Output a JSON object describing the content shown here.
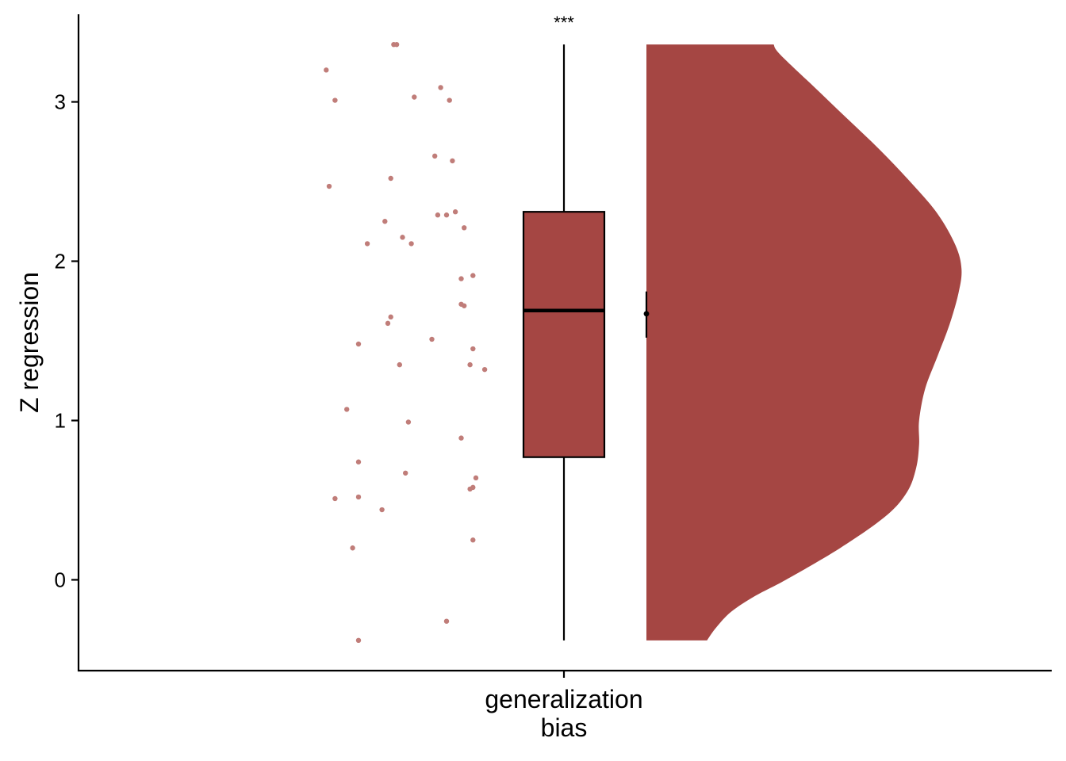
{
  "chart_data": {
    "type": "raincloud",
    "title": "",
    "xlabel": "",
    "ylabel": "Z regression",
    "categories": [
      "generalization\nbias"
    ],
    "ylim": [
      -0.57,
      3.55
    ],
    "yticks": [
      0,
      1,
      2,
      3
    ],
    "significance": "***",
    "colors": {
      "fill": "#a54643",
      "points": "#c07d79",
      "line": "#000000"
    },
    "boxplot": {
      "min": -0.38,
      "q1": 0.77,
      "median": 1.69,
      "q3": 2.31,
      "max": 3.36
    },
    "mean": {
      "value": 1.67,
      "lower": 1.52,
      "upper": 1.81
    },
    "density": {
      "y": [
        -0.38,
        -0.3,
        -0.2,
        -0.1,
        0.0,
        0.2,
        0.4,
        0.55,
        0.7,
        0.85,
        1.0,
        1.2,
        1.4,
        1.6,
        1.8,
        1.95,
        2.1,
        2.3,
        2.5,
        2.7,
        2.9,
        3.1,
        3.3,
        3.36
      ],
      "width": [
        0.2,
        0.23,
        0.28,
        0.36,
        0.46,
        0.64,
        0.79,
        0.86,
        0.89,
        0.9,
        0.9,
        0.92,
        0.96,
        1.0,
        1.03,
        1.04,
        1.02,
        0.96,
        0.87,
        0.77,
        0.66,
        0.55,
        0.44,
        0.42
      ]
    },
    "points": [
      {
        "x": -0.81,
        "y": 3.2
      },
      {
        "x": -0.58,
        "y": 3.36
      },
      {
        "x": -0.57,
        "y": 3.36
      },
      {
        "x": -0.42,
        "y": 3.09
      },
      {
        "x": -0.78,
        "y": 3.01
      },
      {
        "x": -0.51,
        "y": 3.03
      },
      {
        "x": -0.39,
        "y": 3.01
      },
      {
        "x": -0.44,
        "y": 2.66
      },
      {
        "x": -0.38,
        "y": 2.63
      },
      {
        "x": -0.59,
        "y": 2.52
      },
      {
        "x": -0.8,
        "y": 2.47
      },
      {
        "x": -0.43,
        "y": 2.29
      },
      {
        "x": -0.4,
        "y": 2.29
      },
      {
        "x": -0.37,
        "y": 2.31
      },
      {
        "x": -0.61,
        "y": 2.25
      },
      {
        "x": -0.34,
        "y": 2.21
      },
      {
        "x": -0.55,
        "y": 2.15
      },
      {
        "x": -0.52,
        "y": 2.11
      },
      {
        "x": -0.67,
        "y": 2.11
      },
      {
        "x": -0.31,
        "y": 1.91
      },
      {
        "x": -0.35,
        "y": 1.89
      },
      {
        "x": -0.35,
        "y": 1.73
      },
      {
        "x": -0.34,
        "y": 1.72
      },
      {
        "x": -0.59,
        "y": 1.65
      },
      {
        "x": -0.6,
        "y": 1.61
      },
      {
        "x": -0.45,
        "y": 1.51
      },
      {
        "x": -0.7,
        "y": 1.48
      },
      {
        "x": -0.31,
        "y": 1.45
      },
      {
        "x": -0.56,
        "y": 1.35
      },
      {
        "x": -0.32,
        "y": 1.35
      },
      {
        "x": -0.27,
        "y": 1.32
      },
      {
        "x": -0.74,
        "y": 1.07
      },
      {
        "x": -0.53,
        "y": 0.99
      },
      {
        "x": -0.35,
        "y": 0.89
      },
      {
        "x": -0.7,
        "y": 0.74
      },
      {
        "x": -0.54,
        "y": 0.67
      },
      {
        "x": -0.3,
        "y": 0.64
      },
      {
        "x": -0.31,
        "y": 0.58
      },
      {
        "x": -0.32,
        "y": 0.57
      },
      {
        "x": -0.7,
        "y": 0.52
      },
      {
        "x": -0.78,
        "y": 0.51
      },
      {
        "x": -0.62,
        "y": 0.44
      },
      {
        "x": -0.31,
        "y": 0.25
      },
      {
        "x": -0.72,
        "y": 0.2
      },
      {
        "x": -0.4,
        "y": -0.26
      },
      {
        "x": -0.7,
        "y": -0.38
      }
    ]
  }
}
